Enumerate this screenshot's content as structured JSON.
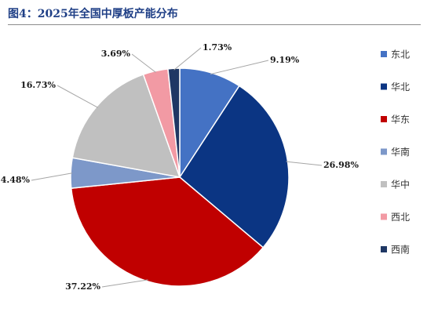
{
  "chart_data": {
    "type": "pie",
    "title": "图4：2025年全国中厚板产能分布",
    "slices": [
      {
        "label": "东北",
        "value": 9.19,
        "value_label": "9.19%",
        "color": "#4472c4"
      },
      {
        "label": "华北",
        "value": 26.98,
        "value_label": "26.98%",
        "color": "#0b3583"
      },
      {
        "label": "华东",
        "value": 37.22,
        "value_label": "37.22%",
        "color": "#c00000"
      },
      {
        "label": "华南",
        "value": 4.48,
        "value_label": "4.48%",
        "color": "#7d98c9"
      },
      {
        "label": "华中",
        "value": 16.73,
        "value_label": "16.73%",
        "color": "#c0c0c0"
      },
      {
        "label": "西北",
        "value": 3.69,
        "value_label": "3.69%",
        "color": "#f29aa4"
      },
      {
        "label": "西南",
        "value": 1.73,
        "value_label": "1.73%",
        "color": "#1f3764"
      }
    ],
    "legend_position": "right"
  }
}
